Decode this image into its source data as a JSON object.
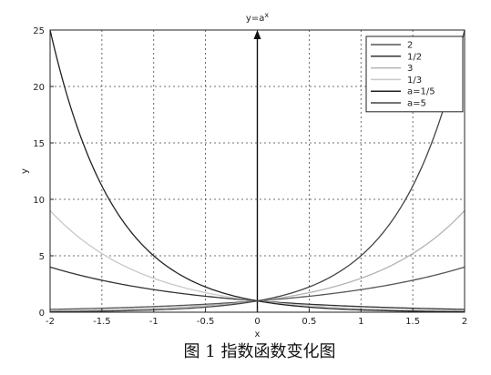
{
  "chart_data": {
    "type": "line",
    "title": "y=a",
    "title_sup": "x",
    "xlabel": "x",
    "ylabel": "y",
    "caption": "图 1  指数函数变化图",
    "xlim": [
      -2,
      2
    ],
    "ylim": [
      0,
      25
    ],
    "xticks": [
      "-2",
      "-1.5",
      "-1",
      "-0.5",
      "0",
      "0.5",
      "1",
      "1.5",
      "2"
    ],
    "yticks": [
      "0",
      "5",
      "10",
      "15",
      "20",
      "25"
    ],
    "grid": true,
    "legend_position": "top-right",
    "x": [
      -2,
      -1.5,
      -1,
      -0.5,
      0,
      0.5,
      1,
      1.5,
      2
    ],
    "series": [
      {
        "name": "2",
        "base": 2,
        "color": "#555555",
        "values": [
          0.25,
          0.35,
          0.5,
          0.71,
          1,
          1.41,
          2,
          2.83,
          4
        ]
      },
      {
        "name": "1/2",
        "base": 0.5,
        "color": "#333333",
        "values": [
          4,
          2.83,
          2,
          1.41,
          1,
          0.71,
          0.5,
          0.35,
          0.25
        ]
      },
      {
        "name": "3",
        "base": 3,
        "color": "#b3b3b3",
        "values": [
          0.11,
          0.19,
          0.33,
          0.58,
          1,
          1.73,
          3,
          5.2,
          9
        ]
      },
      {
        "name": "1/3",
        "base": 0.3333,
        "color": "#c8c8c8",
        "values": [
          9,
          5.2,
          3,
          1.73,
          1,
          0.58,
          0.33,
          0.19,
          0.11
        ]
      },
      {
        "name": "a=1/5",
        "base": 0.2,
        "color": "#222222",
        "values": [
          25,
          11.18,
          5,
          2.24,
          1,
          0.45,
          0.2,
          0.09,
          0.04
        ]
      },
      {
        "name": "a=5",
        "base": 5,
        "color": "#444444",
        "values": [
          0.04,
          0.09,
          0.2,
          0.45,
          1,
          2.24,
          5,
          11.18,
          25
        ]
      }
    ]
  }
}
